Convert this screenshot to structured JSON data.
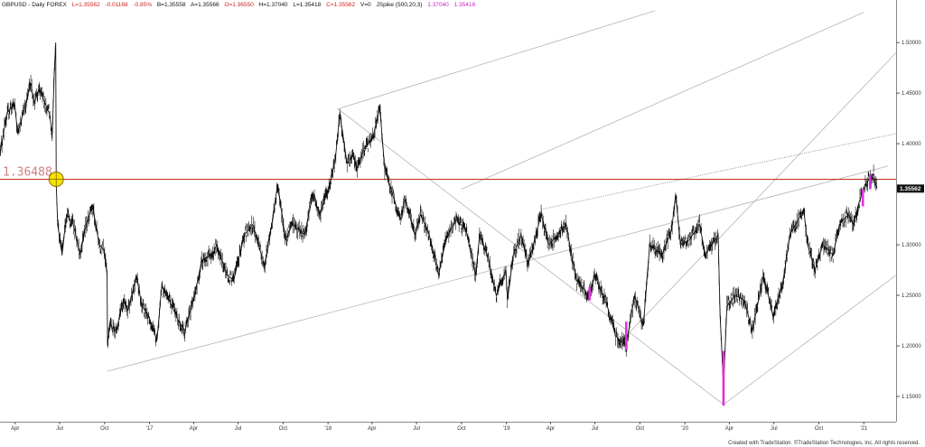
{
  "header": {
    "symbol": "GBPUSD - Daily  FOREX",
    "last": "L=1.35562",
    "change": "-0.01168",
    "change_pct": "-0.85%",
    "bid": "B=1.35558",
    "ask": "A=1.35566",
    "open": "O=1.36550",
    "high": "H=1.37040",
    "low": "L=1.35418",
    "close": "C=1.35562",
    "volume": "V=0",
    "study": "JSpike (500,20,3)",
    "study_val1": "1.37040",
    "study_val2": "1.35418"
  },
  "footer": {
    "credit": "Created with TradeStation. ©TradeStation Technologies, Inc. All rights reserved."
  },
  "colors": {
    "header_black": "#111111",
    "header_red": "#cc2222",
    "header_magenta": "#cc22cc",
    "price": "#111111",
    "spike": "#dd33dd",
    "hline": "#c0392b",
    "hline_label": "#d08080",
    "channel": "#b4b4b4",
    "marker_fill": "#f7e300",
    "marker_stroke": "#8a6d00",
    "price_tag_bg": "#111111",
    "price_tag_text": "#ffffff"
  },
  "chart_data": {
    "type": "line",
    "title": "GBPUSD - Daily",
    "ylim": [
      1.125,
      1.535
    ],
    "x_range": [
      "2016-03-01",
      "2021-03-08"
    ],
    "y_ticks": [
      {
        "value": 1.5,
        "label": "1.50000"
      },
      {
        "value": 1.45,
        "label": "1.45000"
      },
      {
        "value": 1.4,
        "label": "1.40000"
      },
      {
        "value": 1.3,
        "label": "1.30000"
      },
      {
        "value": 1.25,
        "label": "1.25000"
      },
      {
        "value": 1.2,
        "label": "1.20000"
      },
      {
        "value": 1.15,
        "label": "1.15000"
      }
    ],
    "x_ticks": [
      {
        "date": "2016-04-01",
        "label": "Apr"
      },
      {
        "date": "2016-07-01",
        "label": "Jul"
      },
      {
        "date": "2016-10-01",
        "label": "Oct"
      },
      {
        "date": "2017-01-01",
        "label": "'17"
      },
      {
        "date": "2017-04-01",
        "label": "Apr"
      },
      {
        "date": "2017-07-01",
        "label": "Jul"
      },
      {
        "date": "2017-10-01",
        "label": "Oct"
      },
      {
        "date": "2018-01-01",
        "label": "'18"
      },
      {
        "date": "2018-04-01",
        "label": "Apr"
      },
      {
        "date": "2018-07-01",
        "label": "Jul"
      },
      {
        "date": "2018-10-01",
        "label": "Oct"
      },
      {
        "date": "2019-01-01",
        "label": "'19"
      },
      {
        "date": "2019-04-01",
        "label": "Apr"
      },
      {
        "date": "2019-07-01",
        "label": "Jul"
      },
      {
        "date": "2019-10-01",
        "label": "Oct"
      },
      {
        "date": "2020-01-01",
        "label": "'20"
      },
      {
        "date": "2020-04-01",
        "label": "Apr"
      },
      {
        "date": "2020-07-01",
        "label": "Jul"
      },
      {
        "date": "2020-10-01",
        "label": "Oct"
      },
      {
        "date": "2021-01-01",
        "label": "'21"
      }
    ],
    "last_price": {
      "value": 1.3556,
      "label": "1.35562"
    },
    "horizontal_level": {
      "value": 1.3648,
      "label": "1.36488"
    },
    "marker_point": {
      "date": "2016-06-24",
      "value": 1.3648
    },
    "price_series": [
      [
        "2016-03-01",
        1.39
      ],
      [
        "2016-03-15",
        1.43
      ],
      [
        "2016-03-31",
        1.44
      ],
      [
        "2016-04-06",
        1.41
      ],
      [
        "2016-04-20",
        1.435
      ],
      [
        "2016-05-03",
        1.46
      ],
      [
        "2016-05-10",
        1.44
      ],
      [
        "2016-05-20",
        1.455
      ],
      [
        "2016-06-01",
        1.44
      ],
      [
        "2016-06-10",
        1.43
      ],
      [
        "2016-06-16",
        1.41
      ],
      [
        "2016-06-20",
        1.47
      ],
      [
        "2016-06-23",
        1.5
      ],
      [
        "2016-06-24",
        1.36
      ],
      [
        "2016-06-27",
        1.32
      ],
      [
        "2016-07-06",
        1.29
      ],
      [
        "2016-07-15",
        1.33
      ],
      [
        "2016-07-29",
        1.32
      ],
      [
        "2016-08-12",
        1.29
      ],
      [
        "2016-08-22",
        1.315
      ],
      [
        "2016-09-06",
        1.34
      ],
      [
        "2016-09-20",
        1.3
      ],
      [
        "2016-09-30",
        1.295
      ],
      [
        "2016-10-06",
        1.27
      ],
      [
        "2016-10-07",
        1.2
      ],
      [
        "2016-10-11",
        1.22
      ],
      [
        "2016-10-25",
        1.215
      ],
      [
        "2016-11-08",
        1.245
      ],
      [
        "2016-11-18",
        1.235
      ],
      [
        "2016-12-05",
        1.27
      ],
      [
        "2016-12-16",
        1.24
      ],
      [
        "2016-12-30",
        1.23
      ],
      [
        "2017-01-16",
        1.205
      ],
      [
        "2017-01-26",
        1.26
      ],
      [
        "2017-02-10",
        1.245
      ],
      [
        "2017-03-01",
        1.225
      ],
      [
        "2017-03-14",
        1.215
      ],
      [
        "2017-04-03",
        1.25
      ],
      [
        "2017-04-18",
        1.285
      ],
      [
        "2017-05-10",
        1.29
      ],
      [
        "2017-05-18",
        1.3
      ],
      [
        "2017-06-09",
        1.27
      ],
      [
        "2017-06-22",
        1.265
      ],
      [
        "2017-07-14",
        1.31
      ],
      [
        "2017-07-31",
        1.32
      ],
      [
        "2017-08-24",
        1.28
      ],
      [
        "2017-09-08",
        1.32
      ],
      [
        "2017-09-20",
        1.36
      ],
      [
        "2017-10-06",
        1.305
      ],
      [
        "2017-10-20",
        1.32
      ],
      [
        "2017-11-14",
        1.31
      ],
      [
        "2017-12-01",
        1.35
      ],
      [
        "2017-12-15",
        1.33
      ],
      [
        "2018-01-02",
        1.355
      ],
      [
        "2018-01-16",
        1.385
      ],
      [
        "2018-01-25",
        1.43
      ],
      [
        "2018-02-09",
        1.38
      ],
      [
        "2018-02-22",
        1.39
      ],
      [
        "2018-03-01",
        1.375
      ],
      [
        "2018-03-16",
        1.395
      ],
      [
        "2018-04-02",
        1.405
      ],
      [
        "2018-04-17",
        1.435
      ],
      [
        "2018-04-27",
        1.375
      ],
      [
        "2018-05-10",
        1.355
      ],
      [
        "2018-05-29",
        1.325
      ],
      [
        "2018-06-07",
        1.345
      ],
      [
        "2018-06-28",
        1.31
      ],
      [
        "2018-07-09",
        1.33
      ],
      [
        "2018-07-27",
        1.31
      ],
      [
        "2018-08-15",
        1.27
      ],
      [
        "2018-08-30",
        1.305
      ],
      [
        "2018-09-20",
        1.325
      ],
      [
        "2018-10-10",
        1.315
      ],
      [
        "2018-10-30",
        1.27
      ],
      [
        "2018-11-07",
        1.31
      ],
      [
        "2018-11-26",
        1.285
      ],
      [
        "2018-12-11",
        1.25
      ],
      [
        "2018-12-31",
        1.275
      ],
      [
        "2019-01-03",
        1.245
      ],
      [
        "2019-01-15",
        1.29
      ],
      [
        "2019-01-31",
        1.31
      ],
      [
        "2019-02-14",
        1.28
      ],
      [
        "2019-03-13",
        1.33
      ],
      [
        "2019-03-29",
        1.3
      ],
      [
        "2019-04-15",
        1.31
      ],
      [
        "2019-05-03",
        1.32
      ],
      [
        "2019-05-24",
        1.265
      ],
      [
        "2019-06-18",
        1.25
      ],
      [
        "2019-07-01",
        1.27
      ],
      [
        "2019-07-26",
        1.24
      ],
      [
        "2019-08-12",
        1.21
      ],
      [
        "2019-09-03",
        1.2
      ],
      [
        "2019-09-20",
        1.25
      ],
      [
        "2019-10-08",
        1.22
      ],
      [
        "2019-10-21",
        1.3
      ],
      [
        "2019-11-15",
        1.29
      ],
      [
        "2019-12-05",
        1.315
      ],
      [
        "2019-12-13",
        1.35
      ],
      [
        "2019-12-23",
        1.3
      ],
      [
        "2020-01-10",
        1.305
      ],
      [
        "2020-01-31",
        1.32
      ],
      [
        "2020-02-12",
        1.29
      ],
      [
        "2020-03-09",
        1.31
      ],
      [
        "2020-03-13",
        1.23
      ],
      [
        "2020-03-20",
        1.16
      ],
      [
        "2020-03-27",
        1.24
      ],
      [
        "2020-04-14",
        1.25
      ],
      [
        "2020-05-01",
        1.245
      ],
      [
        "2020-05-18",
        1.215
      ],
      [
        "2020-06-10",
        1.27
      ],
      [
        "2020-06-29",
        1.23
      ],
      [
        "2020-07-20",
        1.265
      ],
      [
        "2020-08-03",
        1.31
      ],
      [
        "2020-08-31",
        1.335
      ],
      [
        "2020-09-08",
        1.3
      ],
      [
        "2020-09-23",
        1.275
      ],
      [
        "2020-10-09",
        1.3
      ],
      [
        "2020-10-30",
        1.29
      ],
      [
        "2020-11-12",
        1.32
      ],
      [
        "2020-11-30",
        1.33
      ],
      [
        "2020-12-11",
        1.32
      ],
      [
        "2020-12-21",
        1.34
      ],
      [
        "2021-01-04",
        1.36
      ],
      [
        "2021-01-12",
        1.365
      ],
      [
        "2021-01-21",
        1.37
      ],
      [
        "2021-01-28",
        1.356
      ]
    ],
    "spike_bars": [
      {
        "date": "2019-06-20",
        "low": 1.245,
        "high": 1.258
      },
      {
        "date": "2019-09-03",
        "low": 1.196,
        "high": 1.224
      },
      {
        "date": "2020-03-20",
        "low": 1.1409,
        "high": 1.195
      },
      {
        "date": "2020-12-30",
        "low": 1.338,
        "high": 1.355
      },
      {
        "date": "2021-01-14",
        "low": 1.355,
        "high": 1.37
      }
    ],
    "trend_lines": [
      {
        "style": "solid",
        "from": [
          "2016-10-07",
          1.175
        ],
        "to": [
          "2021-02-20",
          1.378
        ]
      },
      {
        "style": "solid",
        "from": [
          "2018-01-20",
          1.435
        ],
        "to": [
          "2020-03-20",
          1.142
        ]
      },
      {
        "style": "solid",
        "from": [
          "2018-01-25",
          1.435
        ],
        "to": [
          "2019-11-01",
          1.5315
        ]
      },
      {
        "style": "solid",
        "from": [
          "2018-10-01",
          1.355
        ],
        "to": [
          "2021-01-01",
          1.53
        ]
      },
      {
        "style": "solid",
        "from": [
          "2019-09-03",
          1.21
        ],
        "to": [
          "2021-03-08",
          1.49
        ]
      },
      {
        "style": "solid",
        "from": [
          "2020-03-20",
          1.142
        ],
        "to": [
          "2021-03-08",
          1.27
        ]
      },
      {
        "style": "dotted",
        "from": [
          "2019-03-13",
          1.335
        ],
        "to": [
          "2021-03-08",
          1.41
        ]
      }
    ]
  }
}
